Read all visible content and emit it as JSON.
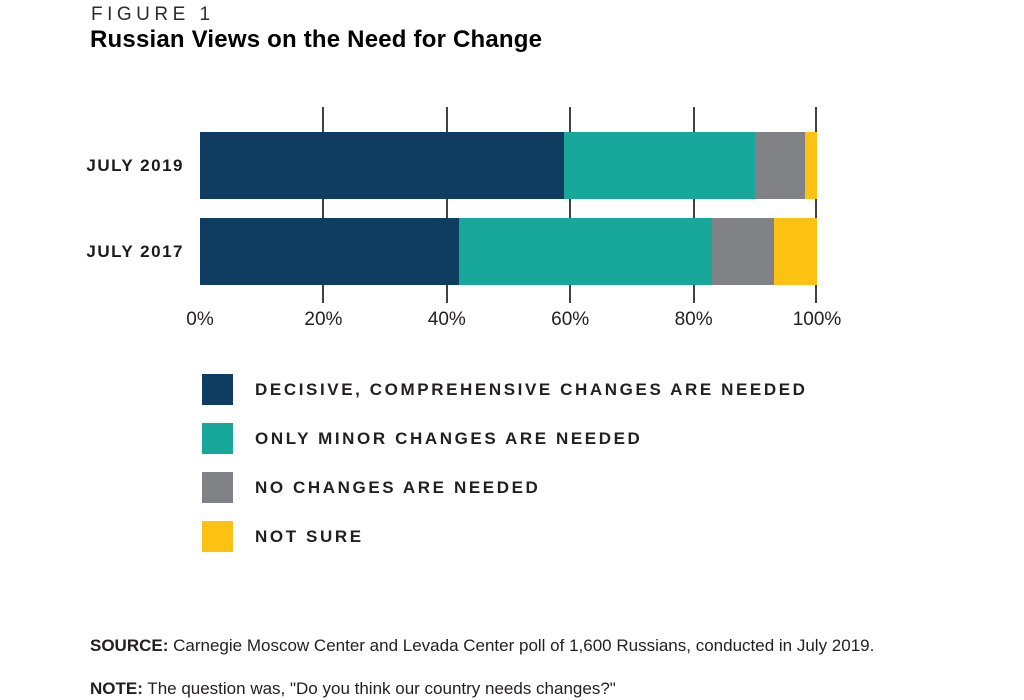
{
  "figure": {
    "label": "FIGURE 1",
    "title": "Russian Views on the Need for Change"
  },
  "chart_data": {
    "type": "bar",
    "orientation": "horizontal-stacked",
    "title": "Russian Views on the Need for Change",
    "categories": [
      "JULY 2019",
      "JULY 2017"
    ],
    "series": [
      {
        "name": "DECISIVE, COMPREHENSIVE CHANGES ARE NEEDED",
        "color": "#0e3d61",
        "values": [
          59,
          42
        ]
      },
      {
        "name": "ONLY MINOR CHANGES ARE NEEDED",
        "color": "#17a79b",
        "values": [
          31,
          41
        ]
      },
      {
        "name": "NO CHANGES ARE NEEDED",
        "color": "#808285",
        "values": [
          8,
          10
        ]
      },
      {
        "name": "NOT SURE",
        "color": "#fcc213",
        "values": [
          2,
          7
        ]
      }
    ],
    "x_ticks": [
      "0%",
      "20%",
      "40%",
      "60%",
      "80%",
      "100%"
    ],
    "xlim": [
      0,
      100
    ],
    "grid": "tick-marks-only, full axis line at 100%",
    "legend_position": "below-left"
  },
  "footer": {
    "source_label": "SOURCE:",
    "source_text": " Carnegie Moscow Center and Levada Center poll of 1,600 Russians, conducted in July 2019.",
    "note_label": "NOTE:",
    "note_text": " The question was, \"Do you think our country needs changes?\""
  }
}
